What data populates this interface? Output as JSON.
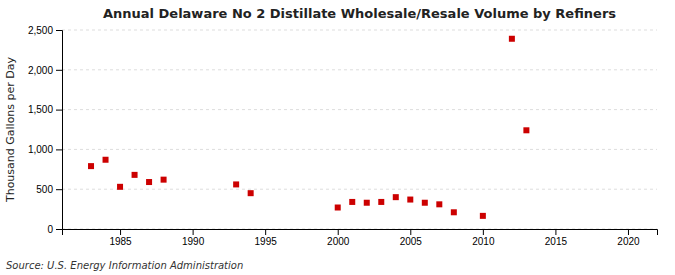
{
  "chart_data": {
    "type": "scatter",
    "title": "Annual Delaware No 2 Distillate Wholesale/Resale Volume by Refiners",
    "ylabel": "Thousand Gallons per Day",
    "source": "Source: U.S. Energy Information Administration",
    "x": [
      1983,
      1984,
      1985,
      1986,
      1987,
      1988,
      1993,
      1994,
      2000,
      2001,
      2002,
      2003,
      2004,
      2005,
      2006,
      2007,
      2008,
      2010,
      2012,
      2013
    ],
    "values": [
      790,
      870,
      530,
      680,
      590,
      620,
      560,
      450,
      270,
      340,
      330,
      340,
      400,
      370,
      330,
      310,
      210,
      165,
      2390,
      1240
    ],
    "color": "#cc0000",
    "marker": "square",
    "xlim": [
      1981,
      2022
    ],
    "xticks": [
      1985,
      1990,
      1995,
      2000,
      2005,
      2010,
      2015,
      2020
    ],
    "ylim": [
      0,
      2500
    ],
    "yticks": [
      0,
      500,
      {
        "value": 1000,
        "label": "1,000"
      },
      {
        "value": 1500,
        "label": "1,500"
      },
      {
        "value": 2000,
        "label": "2,000"
      },
      {
        "value": 2500,
        "label": "2,500"
      }
    ],
    "grid": true
  }
}
